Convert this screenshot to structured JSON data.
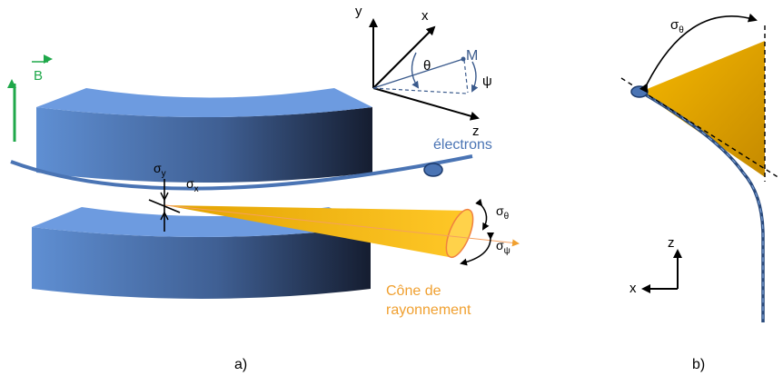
{
  "panel_a": {
    "caption": "a)",
    "b_field_label": "B",
    "electrons_label": "électrons",
    "cone_label_line1": "Cône de",
    "cone_label_line2": "rayonnement",
    "sigma_symbol": "σ",
    "sub_y": "y",
    "sub_x": "x",
    "sub_theta": "θ",
    "sub_psi": "ψ",
    "axes": {
      "y": "y",
      "x": "x",
      "z": "z",
      "point": "M",
      "theta": "θ",
      "psi": "ψ"
    }
  },
  "panel_b": {
    "caption": "b)",
    "sigma_symbol": "σ",
    "sub_theta": "θ",
    "axis_z": "z",
    "axis_x": "x"
  },
  "colors": {
    "magnet_face": "#6a9ad9",
    "magnet_dark": "#1c2a44",
    "beam": "#4a74b4",
    "cone": "#f4b400",
    "cone_dark": "#c98e00",
    "b_field": "#1fa84a",
    "cone_label": "#f0a030",
    "electrons_label": "#4a74b4",
    "axis_blue": "#3a5a8c"
  }
}
